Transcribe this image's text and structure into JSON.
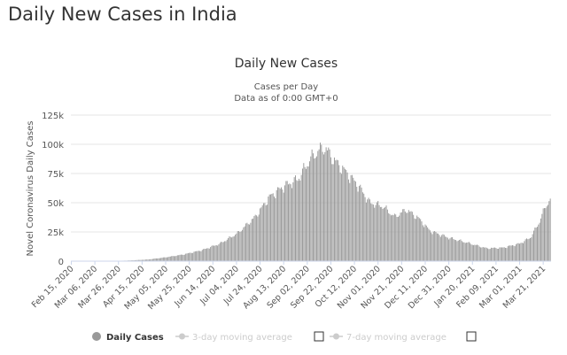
{
  "page": {
    "heading": "Daily New Cases in India"
  },
  "chart_data": {
    "type": "bar",
    "title": "Daily New Cases",
    "subtitle_line1": "Cases per Day",
    "subtitle_line2": "Data as of 0:00 GMT+0",
    "ylabel": "Novel Coronavirus Daily Cases",
    "xlabel": "",
    "ylim": [
      0,
      125000
    ],
    "yticks": [
      0,
      25000,
      50000,
      75000,
      100000,
      125000
    ],
    "ytick_labels": [
      "0",
      "25k",
      "50k",
      "75k",
      "100k",
      "125k"
    ],
    "xtick_labels": [
      "Feb 15, 2020",
      "Mar 06, 2020",
      "Mar 26, 2020",
      "Apr 15, 2020",
      "May 05, 2020",
      "May 25, 2020",
      "Jun 14, 2020",
      "Jul 04, 2020",
      "Jul 24, 2020",
      "Aug 13, 2020",
      "Sep 02, 2020",
      "Sep 22, 2020",
      "Oct 12, 2020",
      "Nov 01, 2020",
      "Nov 21, 2020",
      "Dec 11, 2020",
      "Dec 31, 2020",
      "Jan 20, 2021",
      "Feb 09, 2021",
      "Mar 01, 2021",
      "Mar 21, 2021"
    ],
    "date_range": [
      "2020-02-15",
      "2021-03-27"
    ],
    "anchors": [
      [
        "2020-02-15",
        0
      ],
      [
        "2020-03-20",
        100
      ],
      [
        "2020-04-05",
        600
      ],
      [
        "2020-04-20",
        1400
      ],
      [
        "2020-05-05",
        3300
      ],
      [
        "2020-05-20",
        5700
      ],
      [
        "2020-06-05",
        9500
      ],
      [
        "2020-06-20",
        15000
      ],
      [
        "2020-07-05",
        24000
      ],
      [
        "2020-07-20",
        38000
      ],
      [
        "2020-08-01",
        55000
      ],
      [
        "2020-08-13",
        64000
      ],
      [
        "2020-08-25",
        70000
      ],
      [
        "2020-09-05",
        88000
      ],
      [
        "2020-09-12",
        95000
      ],
      [
        "2020-09-17",
        97000
      ],
      [
        "2020-09-25",
        86000
      ],
      [
        "2020-10-05",
        76000
      ],
      [
        "2020-10-15",
        65000
      ],
      [
        "2020-10-25",
        50000
      ],
      [
        "2020-11-05",
        47000
      ],
      [
        "2020-11-15",
        38000
      ],
      [
        "2020-11-25",
        44000
      ],
      [
        "2020-12-05",
        37000
      ],
      [
        "2020-12-15",
        26000
      ],
      [
        "2020-12-31",
        20000
      ],
      [
        "2021-01-15",
        16000
      ],
      [
        "2021-02-01",
        11000
      ],
      [
        "2021-02-15",
        11500
      ],
      [
        "2021-03-01",
        15000
      ],
      [
        "2021-03-10",
        20000
      ],
      [
        "2021-03-17",
        32000
      ],
      [
        "2021-03-23",
        47000
      ],
      [
        "2021-03-27",
        53000
      ]
    ],
    "series": [
      {
        "name": "Daily Cases",
        "color": "#999999"
      }
    ],
    "legend": {
      "items": [
        {
          "label": "Daily Cases",
          "active": true
        },
        {
          "label": "3-day moving average",
          "active": false
        },
        {
          "label": "7-day moving average",
          "active": false
        }
      ],
      "placement": "bottom"
    },
    "grid": true
  }
}
